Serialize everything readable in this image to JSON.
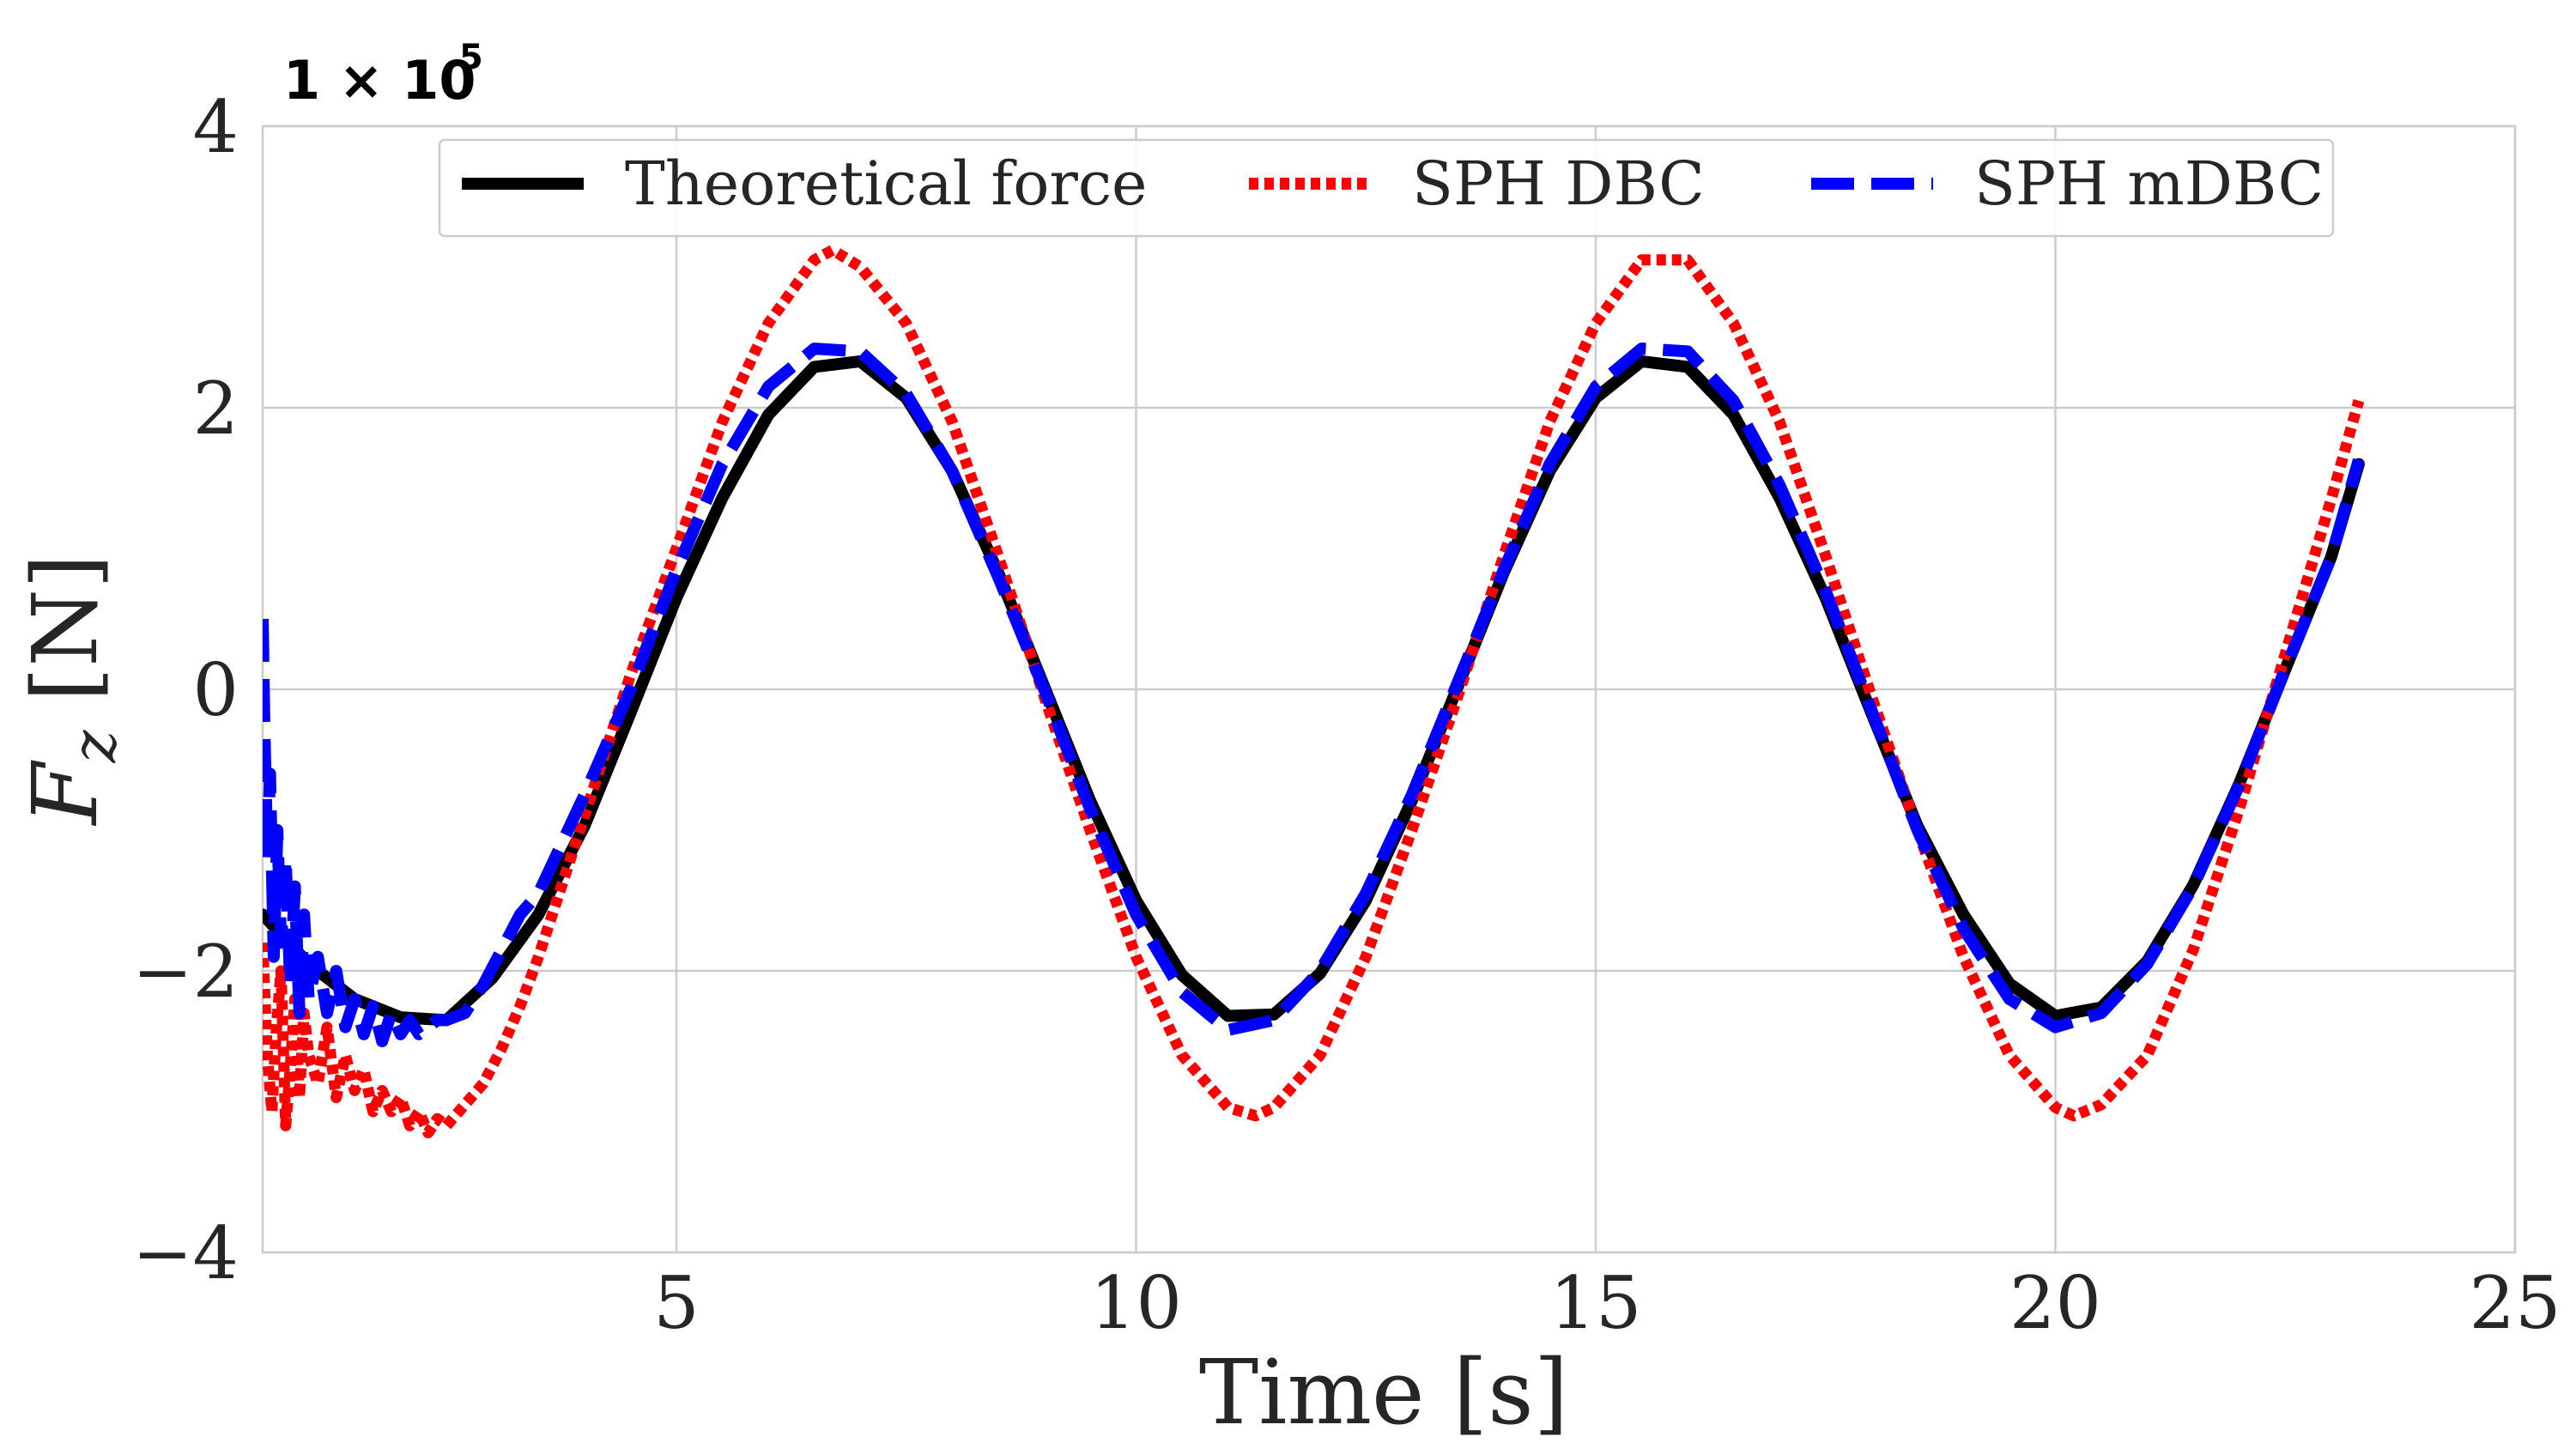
{
  "chart_data": {
    "type": "line",
    "title": "",
    "xlabel": "Time [s]",
    "ylabel_main": "F",
    "ylabel_sub": "z",
    "ylabel_unit": " [N]",
    "y_multiplier_base": "1 × 10",
    "y_multiplier_exp": "5",
    "xlim": [
      0.5,
      25
    ],
    "ylim": [
      -4,
      4
    ],
    "x_ticks": [
      5,
      10,
      15,
      20,
      25
    ],
    "x_tick_labels": [
      "5",
      "10",
      "15",
      "20",
      "25"
    ],
    "y_ticks": [
      -4,
      -2,
      0,
      2,
      4
    ],
    "y_tick_labels": [
      "−4",
      "−2",
      "0",
      "2",
      "4"
    ],
    "grid": true,
    "legend_position": "top",
    "series": [
      {
        "name": "Theoretical force",
        "color": "#000000",
        "style": "solid",
        "x": [
          0.5,
          1.0,
          1.5,
          2.0,
          2.5,
          3.0,
          3.5,
          4.0,
          4.5,
          5.0,
          5.5,
          6.0,
          6.5,
          7.0,
          7.5,
          8.0,
          8.5,
          9.0,
          9.5,
          10.0,
          10.5,
          11.0,
          11.5,
          12.0,
          12.5,
          13.0,
          13.5,
          14.0,
          14.5,
          15.0,
          15.5,
          16.0,
          16.5,
          17.0,
          17.5,
          18.0,
          18.5,
          19.0,
          19.5,
          20.0,
          20.5,
          21.0,
          21.5,
          22.0,
          22.5,
          23.0,
          23.3
        ],
        "y": [
          -1.6,
          -1.95,
          -2.2,
          -2.33,
          -2.35,
          -2.05,
          -1.6,
          -0.97,
          -0.17,
          0.65,
          1.36,
          1.95,
          2.29,
          2.33,
          2.07,
          1.55,
          0.83,
          0.02,
          -0.79,
          -1.5,
          -2.03,
          -2.32,
          -2.31,
          -2.02,
          -1.5,
          -0.79,
          0.02,
          0.83,
          1.55,
          2.07,
          2.33,
          2.29,
          1.95,
          1.36,
          0.65,
          -0.17,
          -0.97,
          -1.6,
          -2.09,
          -2.32,
          -2.26,
          -1.93,
          -1.39,
          -0.67,
          0.14,
          0.94,
          1.6
        ]
      },
      {
        "name": "SPH DBC",
        "color": "#ff0000",
        "style": "dotted",
        "x": [
          0.5,
          0.55,
          0.6,
          0.65,
          0.7,
          0.75,
          0.8,
          0.85,
          0.9,
          0.95,
          1.0,
          1.1,
          1.2,
          1.3,
          1.4,
          1.5,
          1.6,
          1.7,
          1.8,
          1.9,
          2.0,
          2.1,
          2.2,
          2.3,
          2.4,
          2.5,
          2.7,
          2.9,
          3.1,
          3.3,
          3.5,
          4.0,
          4.5,
          5.0,
          5.5,
          6.0,
          6.5,
          6.7,
          7.0,
          7.5,
          8.0,
          8.5,
          9.0,
          9.5,
          10.0,
          10.5,
          11.0,
          11.3,
          11.5,
          12.0,
          12.5,
          13.0,
          13.5,
          14.0,
          14.5,
          15.0,
          15.5,
          16.0,
          16.5,
          17.0,
          17.5,
          18.0,
          18.5,
          19.0,
          19.5,
          20.0,
          20.2,
          20.5,
          21.0,
          21.5,
          22.0,
          22.5,
          23.0,
          23.3
        ],
        "y": [
          -1.8,
          -2.6,
          -3.0,
          -2.4,
          -2.0,
          -3.1,
          -2.7,
          -2.2,
          -2.9,
          -2.3,
          -2.6,
          -2.8,
          -2.4,
          -2.9,
          -2.6,
          -2.85,
          -2.7,
          -3.0,
          -2.85,
          -3.0,
          -2.9,
          -3.1,
          -3.0,
          -3.15,
          -3.05,
          -3.1,
          -2.95,
          -2.8,
          -2.55,
          -2.25,
          -1.9,
          -0.9,
          0.1,
          1.0,
          1.9,
          2.6,
          3.05,
          3.12,
          3.0,
          2.6,
          1.9,
          0.95,
          -0.05,
          -1.0,
          -1.9,
          -2.6,
          -2.97,
          -3.03,
          -2.97,
          -2.6,
          -1.9,
          -1.0,
          -0.05,
          0.95,
          1.9,
          2.6,
          3.05,
          3.05,
          2.6,
          1.9,
          0.95,
          -0.05,
          -1.0,
          -1.9,
          -2.6,
          -2.97,
          -3.03,
          -2.95,
          -2.6,
          -1.85,
          -0.85,
          0.25,
          1.35,
          2.05
        ]
      },
      {
        "name": "SPH mDBC",
        "color": "#0000ff",
        "style": "dashed",
        "x": [
          0.5,
          0.52,
          0.55,
          0.58,
          0.62,
          0.66,
          0.7,
          0.75,
          0.8,
          0.85,
          0.9,
          0.95,
          1.0,
          1.1,
          1.2,
          1.3,
          1.4,
          1.5,
          1.6,
          1.7,
          1.8,
          1.9,
          2.0,
          2.1,
          2.2,
          2.3,
          2.4,
          2.5,
          2.7,
          2.9,
          3.1,
          3.3,
          3.5,
          4.0,
          4.5,
          5.0,
          5.5,
          6.0,
          6.5,
          7.0,
          7.5,
          8.0,
          8.5,
          9.0,
          9.5,
          10.0,
          10.5,
          11.0,
          11.5,
          12.0,
          12.5,
          13.0,
          13.5,
          14.0,
          14.5,
          15.0,
          15.5,
          16.0,
          16.5,
          17.0,
          17.5,
          18.0,
          18.5,
          19.0,
          19.5,
          20.0,
          20.5,
          21.0,
          21.5,
          22.0,
          22.5,
          23.0,
          23.3
        ],
        "y": [
          0.5,
          -0.3,
          -1.2,
          -0.6,
          -1.9,
          -1.0,
          -1.8,
          -1.2,
          -2.1,
          -1.4,
          -2.3,
          -1.6,
          -2.2,
          -1.9,
          -2.3,
          -2.0,
          -2.4,
          -2.2,
          -2.45,
          -2.25,
          -2.5,
          -2.3,
          -2.45,
          -2.35,
          -2.45,
          -2.4,
          -2.35,
          -2.35,
          -2.3,
          -2.1,
          -1.85,
          -1.6,
          -1.45,
          -0.75,
          0.0,
          0.85,
          1.6,
          2.15,
          2.42,
          2.4,
          2.1,
          1.55,
          0.8,
          0.0,
          -0.85,
          -1.6,
          -2.15,
          -2.42,
          -2.35,
          -2.0,
          -1.45,
          -0.75,
          0.05,
          0.85,
          1.6,
          2.15,
          2.42,
          2.4,
          2.05,
          1.45,
          0.7,
          -0.15,
          -1.0,
          -1.7,
          -2.2,
          -2.4,
          -2.3,
          -1.95,
          -1.4,
          -0.68,
          0.14,
          0.94,
          1.63
        ]
      }
    ]
  }
}
